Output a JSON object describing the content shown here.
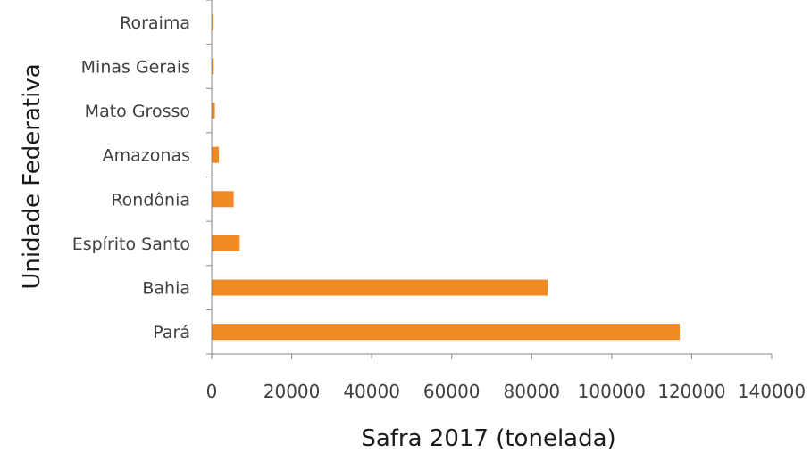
{
  "chart_data": {
    "type": "bar",
    "orientation": "horizontal",
    "categories": [
      "Pará",
      "Bahia",
      "Espírito Santo",
      "Rondônia",
      "Amazonas",
      "Mato Grosso",
      "Minas Gerais",
      "Roraima"
    ],
    "values": [
      117000,
      84000,
      7000,
      5500,
      1800,
      800,
      500,
      400
    ],
    "xlabel": "Safra 2017  (tonelada)",
    "ylabel": "Unidade Federativa",
    "xlim": [
      0,
      140000
    ],
    "x_ticks": [
      "0",
      "20000",
      "40000",
      "60000",
      "80000",
      "100000",
      "120000",
      "140000"
    ],
    "grid": false,
    "legend": "none",
    "bar_color": "#f08a24"
  }
}
